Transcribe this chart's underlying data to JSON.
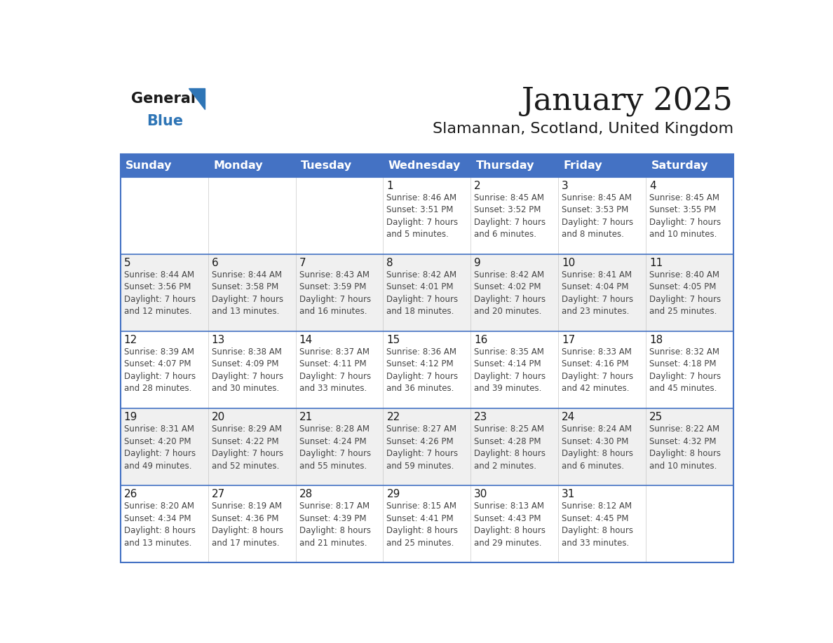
{
  "title": "January 2025",
  "subtitle": "Slamannan, Scotland, United Kingdom",
  "days_of_week": [
    "Sunday",
    "Monday",
    "Tuesday",
    "Wednesday",
    "Thursday",
    "Friday",
    "Saturday"
  ],
  "header_bg": "#4472C4",
  "header_text_color": "#FFFFFF",
  "cell_bg_white": "#FFFFFF",
  "cell_bg_gray": "#F0F0F0",
  "border_color": "#4472C4",
  "row_divider_color": "#4472C4",
  "title_color": "#1a1a1a",
  "subtitle_color": "#1a1a1a",
  "text_color": "#444444",
  "day_number_color": "#1a1a1a",
  "logo_general_color": "#1a1a1a",
  "logo_blue_color": "#2E75B6",
  "calendar_data": [
    [
      {
        "day": null,
        "info": null
      },
      {
        "day": null,
        "info": null
      },
      {
        "day": null,
        "info": null
      },
      {
        "day": 1,
        "info": "Sunrise: 8:46 AM\nSunset: 3:51 PM\nDaylight: 7 hours\nand 5 minutes."
      },
      {
        "day": 2,
        "info": "Sunrise: 8:45 AM\nSunset: 3:52 PM\nDaylight: 7 hours\nand 6 minutes."
      },
      {
        "day": 3,
        "info": "Sunrise: 8:45 AM\nSunset: 3:53 PM\nDaylight: 7 hours\nand 8 minutes."
      },
      {
        "day": 4,
        "info": "Sunrise: 8:45 AM\nSunset: 3:55 PM\nDaylight: 7 hours\nand 10 minutes."
      }
    ],
    [
      {
        "day": 5,
        "info": "Sunrise: 8:44 AM\nSunset: 3:56 PM\nDaylight: 7 hours\nand 12 minutes."
      },
      {
        "day": 6,
        "info": "Sunrise: 8:44 AM\nSunset: 3:58 PM\nDaylight: 7 hours\nand 13 minutes."
      },
      {
        "day": 7,
        "info": "Sunrise: 8:43 AM\nSunset: 3:59 PM\nDaylight: 7 hours\nand 16 minutes."
      },
      {
        "day": 8,
        "info": "Sunrise: 8:42 AM\nSunset: 4:01 PM\nDaylight: 7 hours\nand 18 minutes."
      },
      {
        "day": 9,
        "info": "Sunrise: 8:42 AM\nSunset: 4:02 PM\nDaylight: 7 hours\nand 20 minutes."
      },
      {
        "day": 10,
        "info": "Sunrise: 8:41 AM\nSunset: 4:04 PM\nDaylight: 7 hours\nand 23 minutes."
      },
      {
        "day": 11,
        "info": "Sunrise: 8:40 AM\nSunset: 4:05 PM\nDaylight: 7 hours\nand 25 minutes."
      }
    ],
    [
      {
        "day": 12,
        "info": "Sunrise: 8:39 AM\nSunset: 4:07 PM\nDaylight: 7 hours\nand 28 minutes."
      },
      {
        "day": 13,
        "info": "Sunrise: 8:38 AM\nSunset: 4:09 PM\nDaylight: 7 hours\nand 30 minutes."
      },
      {
        "day": 14,
        "info": "Sunrise: 8:37 AM\nSunset: 4:11 PM\nDaylight: 7 hours\nand 33 minutes."
      },
      {
        "day": 15,
        "info": "Sunrise: 8:36 AM\nSunset: 4:12 PM\nDaylight: 7 hours\nand 36 minutes."
      },
      {
        "day": 16,
        "info": "Sunrise: 8:35 AM\nSunset: 4:14 PM\nDaylight: 7 hours\nand 39 minutes."
      },
      {
        "day": 17,
        "info": "Sunrise: 8:33 AM\nSunset: 4:16 PM\nDaylight: 7 hours\nand 42 minutes."
      },
      {
        "day": 18,
        "info": "Sunrise: 8:32 AM\nSunset: 4:18 PM\nDaylight: 7 hours\nand 45 minutes."
      }
    ],
    [
      {
        "day": 19,
        "info": "Sunrise: 8:31 AM\nSunset: 4:20 PM\nDaylight: 7 hours\nand 49 minutes."
      },
      {
        "day": 20,
        "info": "Sunrise: 8:29 AM\nSunset: 4:22 PM\nDaylight: 7 hours\nand 52 minutes."
      },
      {
        "day": 21,
        "info": "Sunrise: 8:28 AM\nSunset: 4:24 PM\nDaylight: 7 hours\nand 55 minutes."
      },
      {
        "day": 22,
        "info": "Sunrise: 8:27 AM\nSunset: 4:26 PM\nDaylight: 7 hours\nand 59 minutes."
      },
      {
        "day": 23,
        "info": "Sunrise: 8:25 AM\nSunset: 4:28 PM\nDaylight: 8 hours\nand 2 minutes."
      },
      {
        "day": 24,
        "info": "Sunrise: 8:24 AM\nSunset: 4:30 PM\nDaylight: 8 hours\nand 6 minutes."
      },
      {
        "day": 25,
        "info": "Sunrise: 8:22 AM\nSunset: 4:32 PM\nDaylight: 8 hours\nand 10 minutes."
      }
    ],
    [
      {
        "day": 26,
        "info": "Sunrise: 8:20 AM\nSunset: 4:34 PM\nDaylight: 8 hours\nand 13 minutes."
      },
      {
        "day": 27,
        "info": "Sunrise: 8:19 AM\nSunset: 4:36 PM\nDaylight: 8 hours\nand 17 minutes."
      },
      {
        "day": 28,
        "info": "Sunrise: 8:17 AM\nSunset: 4:39 PM\nDaylight: 8 hours\nand 21 minutes."
      },
      {
        "day": 29,
        "info": "Sunrise: 8:15 AM\nSunset: 4:41 PM\nDaylight: 8 hours\nand 25 minutes."
      },
      {
        "day": 30,
        "info": "Sunrise: 8:13 AM\nSunset: 4:43 PM\nDaylight: 8 hours\nand 29 minutes."
      },
      {
        "day": 31,
        "info": "Sunrise: 8:12 AM\nSunset: 4:45 PM\nDaylight: 8 hours\nand 33 minutes."
      },
      {
        "day": null,
        "info": null
      }
    ]
  ]
}
